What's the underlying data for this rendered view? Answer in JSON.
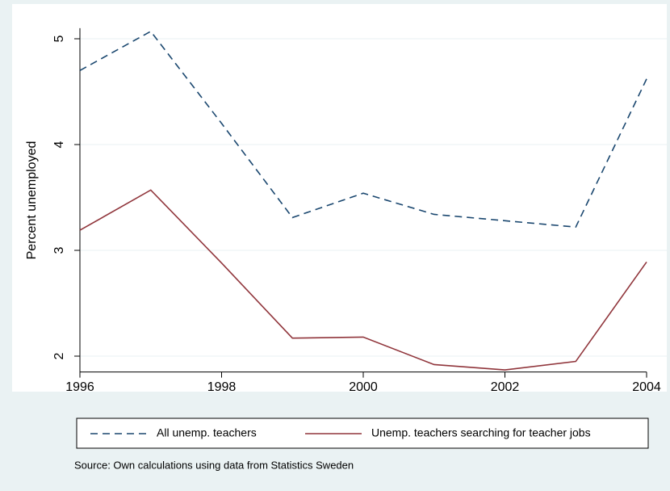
{
  "chart_data": {
    "type": "line",
    "y_label": "Percent unemployed",
    "note": "Source: Own calculations using data from Statistics Sweden",
    "x": [
      1996,
      1997,
      1998,
      1999,
      2000,
      2001,
      2002,
      2003,
      2004
    ],
    "series": [
      {
        "name": "All unemp. teachers",
        "color": "#1a476f",
        "dash": "dashed",
        "values": [
          4.7,
          5.07,
          4.2,
          3.31,
          3.54,
          3.34,
          3.28,
          3.22,
          4.62
        ]
      },
      {
        "name": "Unemp. teachers searching for teacher jobs",
        "color": "#90353b",
        "dash": "solid",
        "values": [
          3.19,
          3.57,
          2.88,
          2.17,
          2.18,
          1.92,
          1.87,
          1.95,
          2.89
        ]
      }
    ],
    "xlim": [
      1996,
      2004
    ],
    "xticks": [
      1996,
      1998,
      2000,
      2002,
      2004
    ],
    "ylim": [
      1.85,
      5.1
    ],
    "yticks": [
      2,
      3,
      4,
      5
    ],
    "grid": true,
    "legend": "bottom"
  }
}
